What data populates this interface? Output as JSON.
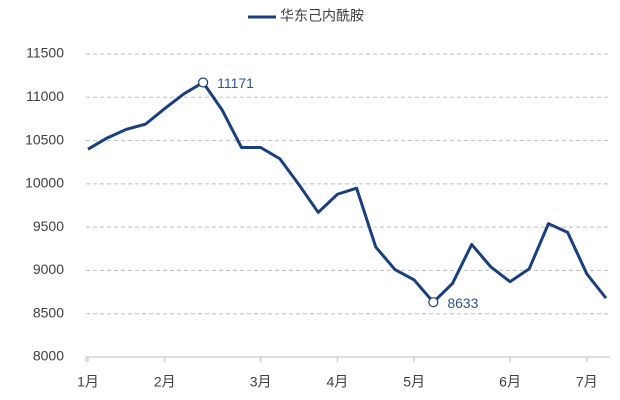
{
  "chart_data": {
    "type": "line",
    "categories": [
      "1月",
      null,
      null,
      null,
      "2月",
      null,
      null,
      null,
      null,
      "3月",
      null,
      null,
      null,
      "4月",
      null,
      null,
      null,
      "5月",
      null,
      null,
      null,
      null,
      "6月",
      null,
      null,
      null,
      "7月",
      null
    ],
    "series": [
      {
        "name": "华东己内酰胺",
        "color": "#1a3f7e",
        "values": [
          10400,
          10530,
          10630,
          10690,
          10870,
          11040,
          11171,
          10850,
          10420,
          10420,
          10290,
          9990,
          9670,
          9880,
          9950,
          9270,
          9010,
          8890,
          8633,
          8850,
          9300,
          9040,
          8870,
          9020,
          9540,
          9440,
          8960,
          8680
        ]
      }
    ],
    "ylim": [
      8000,
      11500
    ],
    "yticks": [
      8000,
      8500,
      9000,
      9500,
      10000,
      10500,
      11000,
      11500
    ],
    "grid": true,
    "legend": "top",
    "annotations": [
      {
        "index": 6,
        "text": "11171"
      },
      {
        "index": 18,
        "text": "8633"
      }
    ]
  }
}
